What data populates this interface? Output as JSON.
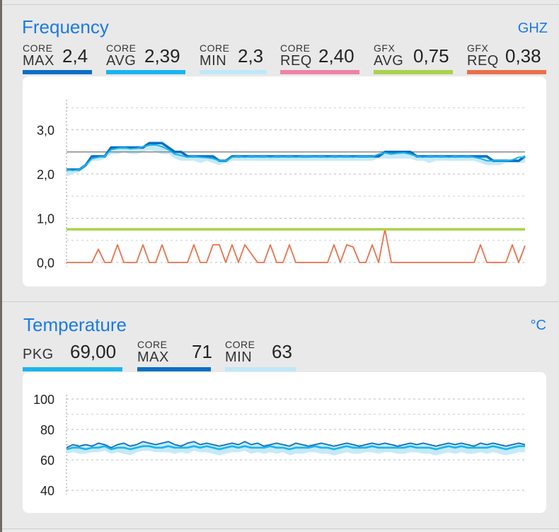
{
  "frequency": {
    "title": "Frequency",
    "unit": "GHZ",
    "metrics": [
      {
        "small": "CORE",
        "big": "MAX",
        "value": "2,4",
        "color": "#0a6fc4"
      },
      {
        "small": "CORE",
        "big": "AVG",
        "value": "2,39",
        "color": "#1ab4ef"
      },
      {
        "small": "CORE",
        "big": "MIN",
        "value": "2,3",
        "color": "#bfe8f8"
      },
      {
        "small": "CORE",
        "big": "REQ",
        "value": "2,40",
        "color": "#ee82a6"
      },
      {
        "small": "GFX",
        "big": "AVG",
        "value": "0,75",
        "color": "#a9d24a"
      },
      {
        "small": "GFX",
        "big": "REQ",
        "value": "0,38",
        "color": "#e8704a"
      }
    ]
  },
  "temperature": {
    "title": "Temperature",
    "unit": "°C",
    "metrics": [
      {
        "small": "",
        "big": "PKG",
        "value": "69,00",
        "color": "#1ab4ef"
      },
      {
        "small": "CORE",
        "big": "MAX",
        "value": "71",
        "color": "#0a6fc4"
      },
      {
        "small": "CORE",
        "big": "MIN",
        "value": "63",
        "color": "#bfe8f8"
      }
    ]
  },
  "chart_data": [
    {
      "type": "line",
      "title": "Frequency",
      "unit": "GHZ",
      "x": [
        0,
        1,
        2,
        3,
        4,
        5,
        6,
        7,
        8,
        9,
        10,
        11,
        12,
        13,
        14,
        15,
        16,
        17,
        18,
        19,
        20,
        21,
        22,
        23,
        24,
        25,
        26,
        27,
        28,
        29,
        30,
        31,
        32,
        33,
        34,
        35,
        36,
        37,
        38,
        39,
        40,
        41,
        42,
        43,
        44,
        45,
        46,
        47,
        48,
        49,
        50,
        51,
        52,
        53,
        54,
        55,
        56,
        57,
        58,
        59,
        60,
        61,
        62,
        63,
        64,
        65,
        66,
        67,
        68,
        69,
        70,
        71,
        72
      ],
      "yticks": [
        "3,0",
        "2,0",
        "1,0",
        "0,0"
      ],
      "ylim": [
        0,
        3.5
      ],
      "grid": true,
      "reference_line": 2.5,
      "series": [
        {
          "name": "CORE MAX",
          "color": "#0a6fc4",
          "values": [
            2.1,
            2.1,
            2.1,
            2.2,
            2.4,
            2.4,
            2.4,
            2.6,
            2.6,
            2.6,
            2.6,
            2.6,
            2.6,
            2.7,
            2.7,
            2.7,
            2.6,
            2.5,
            2.5,
            2.4,
            2.4,
            2.4,
            2.4,
            2.4,
            2.3,
            2.3,
            2.4,
            2.4,
            2.4,
            2.4,
            2.4,
            2.4,
            2.4,
            2.4,
            2.4,
            2.4,
            2.4,
            2.4,
            2.4,
            2.4,
            2.4,
            2.4,
            2.4,
            2.4,
            2.4,
            2.4,
            2.4,
            2.4,
            2.4,
            2.4,
            2.5,
            2.5,
            2.5,
            2.5,
            2.5,
            2.4,
            2.4,
            2.4,
            2.4,
            2.4,
            2.4,
            2.4,
            2.4,
            2.4,
            2.4,
            2.4,
            2.4,
            2.3,
            2.3,
            2.3,
            2.3,
            2.3,
            2.4
          ]
        },
        {
          "name": "CORE AVG",
          "color": "#1ab4ef",
          "values": [
            2.1,
            2.08,
            2.1,
            2.2,
            2.35,
            2.38,
            2.4,
            2.55,
            2.58,
            2.6,
            2.57,
            2.58,
            2.62,
            2.65,
            2.66,
            2.62,
            2.55,
            2.45,
            2.42,
            2.38,
            2.4,
            2.38,
            2.37,
            2.35,
            2.3,
            2.3,
            2.38,
            2.4,
            2.38,
            2.4,
            2.39,
            2.4,
            2.38,
            2.4,
            2.39,
            2.4,
            2.38,
            2.4,
            2.4,
            2.39,
            2.4,
            2.38,
            2.4,
            2.39,
            2.4,
            2.38,
            2.4,
            2.4,
            2.39,
            2.45,
            2.48,
            2.45,
            2.47,
            2.48,
            2.45,
            2.4,
            2.38,
            2.4,
            2.39,
            2.4,
            2.38,
            2.4,
            2.39,
            2.4,
            2.38,
            2.35,
            2.3,
            2.3,
            2.3,
            2.3,
            2.32,
            2.38,
            2.38
          ]
        },
        {
          "name": "CORE MIN",
          "color": "#bfe8f8",
          "values": [
            1.95,
            2.0,
            2.05,
            2.15,
            2.3,
            2.3,
            2.35,
            2.45,
            2.45,
            2.5,
            2.45,
            2.45,
            2.5,
            2.55,
            2.5,
            2.45,
            2.45,
            2.35,
            2.3,
            2.3,
            2.3,
            2.25,
            2.3,
            2.25,
            2.2,
            2.25,
            2.3,
            2.3,
            2.3,
            2.3,
            2.3,
            2.3,
            2.3,
            2.3,
            2.3,
            2.3,
            2.3,
            2.3,
            2.3,
            2.3,
            2.3,
            2.3,
            2.3,
            2.3,
            2.3,
            2.3,
            2.3,
            2.3,
            2.3,
            2.35,
            2.35,
            2.35,
            2.35,
            2.35,
            2.35,
            2.3,
            2.3,
            2.25,
            2.3,
            2.3,
            2.3,
            2.3,
            2.3,
            2.3,
            2.3,
            2.25,
            2.2,
            2.2,
            2.2,
            2.25,
            2.25,
            2.25,
            2.25
          ]
        },
        {
          "name": "GFX AVG",
          "color": "#a9d24a",
          "values": [
            0.75,
            0.75,
            0.75,
            0.75,
            0.75,
            0.75,
            0.75,
            0.75,
            0.75,
            0.75,
            0.75,
            0.75,
            0.75,
            0.75,
            0.75,
            0.75,
            0.75,
            0.75,
            0.75,
            0.75,
            0.75,
            0.75,
            0.75,
            0.75,
            0.75,
            0.75,
            0.75,
            0.75,
            0.75,
            0.75,
            0.75,
            0.75,
            0.75,
            0.75,
            0.75,
            0.75,
            0.75,
            0.75,
            0.75,
            0.75,
            0.75,
            0.75,
            0.75,
            0.75,
            0.75,
            0.75,
            0.75,
            0.75,
            0.75,
            0.75,
            0.75,
            0.75,
            0.75,
            0.75,
            0.75,
            0.75,
            0.75,
            0.75,
            0.75,
            0.75,
            0.75,
            0.75,
            0.75,
            0.75,
            0.75,
            0.75,
            0.75,
            0.75,
            0.75,
            0.75,
            0.75,
            0.75,
            0.75
          ]
        },
        {
          "name": "GFX REQ",
          "color": "#e8704a",
          "values": [
            0,
            0,
            0,
            0,
            0,
            0.3,
            0,
            0,
            0.4,
            0,
            0,
            0,
            0.4,
            0,
            0,
            0.4,
            0,
            0,
            0,
            0,
            0.4,
            0,
            0,
            0.4,
            0.4,
            0,
            0.4,
            0,
            0.4,
            0.2,
            0,
            0,
            0.4,
            0,
            0,
            0.4,
            0,
            0,
            0,
            0,
            0,
            0,
            0.4,
            0,
            0.4,
            0.35,
            0,
            0,
            0.4,
            0,
            0.75,
            0,
            0,
            0,
            0,
            0,
            0,
            0,
            0,
            0,
            0,
            0,
            0,
            0,
            0,
            0.4,
            0,
            0,
            0,
            0,
            0.4,
            0,
            0.38
          ]
        }
      ]
    },
    {
      "type": "line",
      "title": "Temperature",
      "unit": "°C",
      "x": [
        0,
        1,
        2,
        3,
        4,
        5,
        6,
        7,
        8,
        9,
        10,
        11,
        12,
        13,
        14,
        15,
        16,
        17,
        18,
        19,
        20,
        21,
        22,
        23,
        24,
        25,
        26,
        27,
        28,
        29,
        30,
        31,
        32,
        33,
        34,
        35,
        36,
        37,
        38,
        39,
        40,
        41,
        42,
        43,
        44,
        45,
        46,
        47,
        48,
        49,
        50,
        51,
        52,
        53,
        54,
        55,
        56,
        57,
        58,
        59,
        60,
        61,
        62,
        63,
        64,
        65,
        66,
        67,
        68,
        69,
        70,
        71,
        72
      ],
      "yticks": [
        "100",
        "80",
        "60",
        "40"
      ],
      "ylim": [
        38,
        104
      ],
      "grid": true,
      "series": [
        {
          "name": "CORE MAX",
          "color": "#0a6fc4",
          "values": [
            68,
            70,
            69,
            70,
            69,
            71,
            70,
            68,
            70,
            71,
            69,
            70,
            72,
            71,
            70,
            71,
            72,
            70,
            69,
            71,
            72,
            70,
            71,
            70,
            69,
            70,
            71,
            70,
            72,
            70,
            71,
            69,
            70,
            71,
            70,
            69,
            71,
            70,
            69,
            70,
            71,
            70,
            69,
            70,
            71,
            70,
            69,
            70,
            71,
            70,
            71,
            70,
            69,
            70,
            71,
            70,
            71,
            70,
            69,
            70,
            71,
            70,
            71,
            70,
            69,
            71,
            70,
            71,
            70,
            69,
            70,
            71,
            70
          ]
        },
        {
          "name": "PKG",
          "color": "#1ab4ef",
          "values": [
            67,
            68,
            68,
            67,
            68,
            68,
            69,
            67,
            68,
            68,
            67,
            68,
            69,
            69,
            68,
            68,
            69,
            68,
            68,
            68,
            69,
            68,
            69,
            68,
            67,
            68,
            69,
            68,
            69,
            68,
            68,
            68,
            69,
            68,
            68,
            67,
            68,
            68,
            68,
            69,
            68,
            68,
            67,
            68,
            69,
            68,
            68,
            68,
            69,
            68,
            68,
            68,
            68,
            68,
            69,
            68,
            68,
            68,
            67,
            68,
            69,
            68,
            69,
            68,
            68,
            68,
            68,
            69,
            68,
            67,
            68,
            69,
            69
          ]
        },
        {
          "name": "CORE MIN",
          "color": "#bfe8f8",
          "values": [
            64,
            65,
            64,
            64,
            65,
            65,
            66,
            64,
            65,
            64,
            63,
            65,
            66,
            66,
            65,
            65,
            65,
            64,
            65,
            64,
            66,
            65,
            65,
            64,
            63,
            64,
            65,
            65,
            66,
            64,
            65,
            64,
            65,
            64,
            65,
            63,
            64,
            64,
            65,
            65,
            64,
            64,
            63,
            64,
            65,
            64,
            64,
            65,
            65,
            64,
            65,
            65,
            64,
            64,
            65,
            65,
            64,
            64,
            63,
            64,
            65,
            64,
            65,
            64,
            64,
            65,
            64,
            65,
            64,
            63,
            64,
            65,
            65
          ]
        }
      ]
    }
  ]
}
